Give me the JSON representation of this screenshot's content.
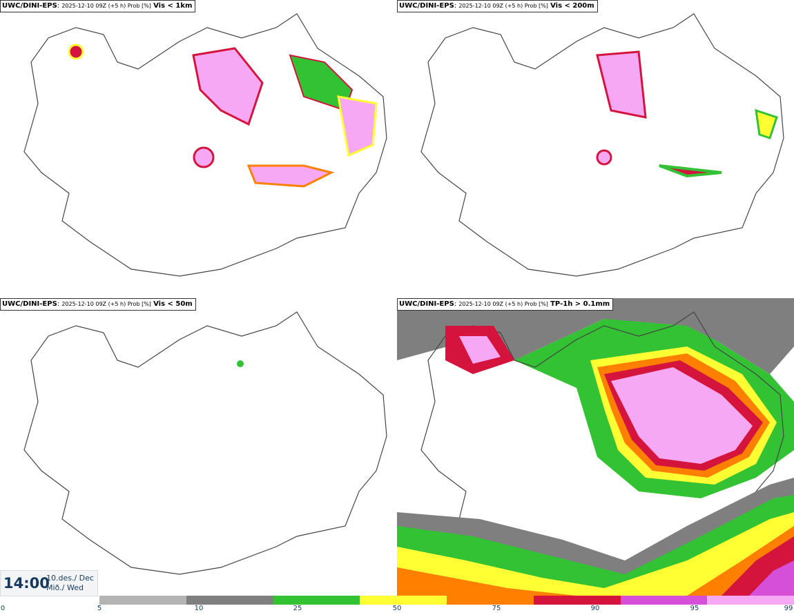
{
  "panels": [
    {
      "model": "UWC/DINI-EPS",
      "meta": "2025-12-10 09Z (+5 h) Prob [%]",
      "variable": "Vis < 1km"
    },
    {
      "model": "UWC/DINI-EPS",
      "meta": "2025-12-10 09Z (+5 h) Prob [%]",
      "variable": "Vis < 200m"
    },
    {
      "model": "UWC/DINI-EPS",
      "meta": "2025-12-10 09Z (+5 h) Prob [%]",
      "variable": "Vis < 50m"
    },
    {
      "model": "UWC/DINI-EPS",
      "meta": "2025-12-10 09Z (+5 h) Prob [%]",
      "variable": "TP-1h > 0.1mm"
    }
  ],
  "valid_time": {
    "time": "14:00",
    "date_line1": "10.des./ Dec",
    "date_line2": "Mið./ Wed"
  },
  "legend": {
    "ticks": [
      "0",
      "5",
      "10",
      "25",
      "50",
      "75",
      "90",
      "95",
      "99"
    ],
    "colors": [
      "#b4b4b4",
      "#7f7f7f",
      "#33c233",
      "#ffff33",
      "#ff8000",
      "#d4143c",
      "#d64fd8",
      "#f7a8f5"
    ]
  },
  "map_colors": {
    "land": "#ffffff",
    "coast": "#444444",
    "roads": "#555555"
  }
}
